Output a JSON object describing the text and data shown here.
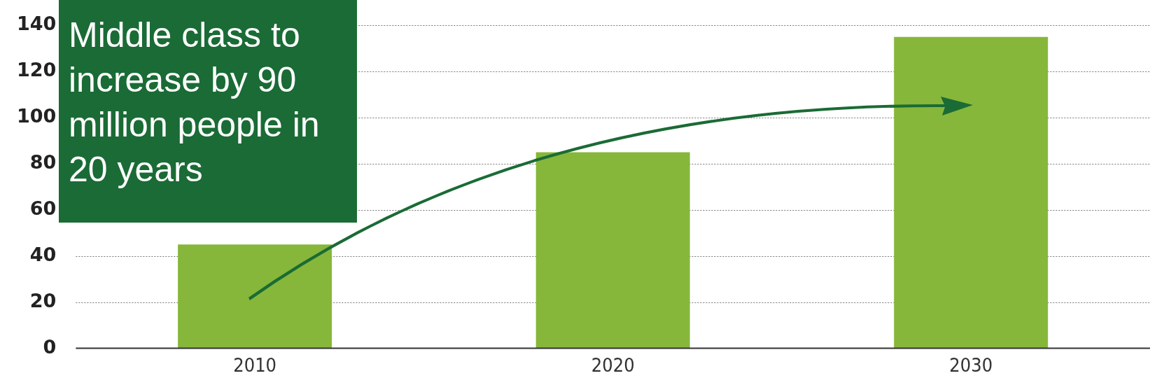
{
  "chart_data": {
    "type": "bar",
    "title": "Middle class to increase by 90 million people in 20 years",
    "categories": [
      "2010",
      "2020",
      "2030"
    ],
    "values": [
      45,
      85,
      135
    ],
    "color": "#86b73a",
    "ylim": [
      0,
      140
    ],
    "yticks": [
      0,
      20,
      40,
      60,
      80,
      100,
      120,
      140
    ],
    "grid": "y",
    "legend": false
  }
}
